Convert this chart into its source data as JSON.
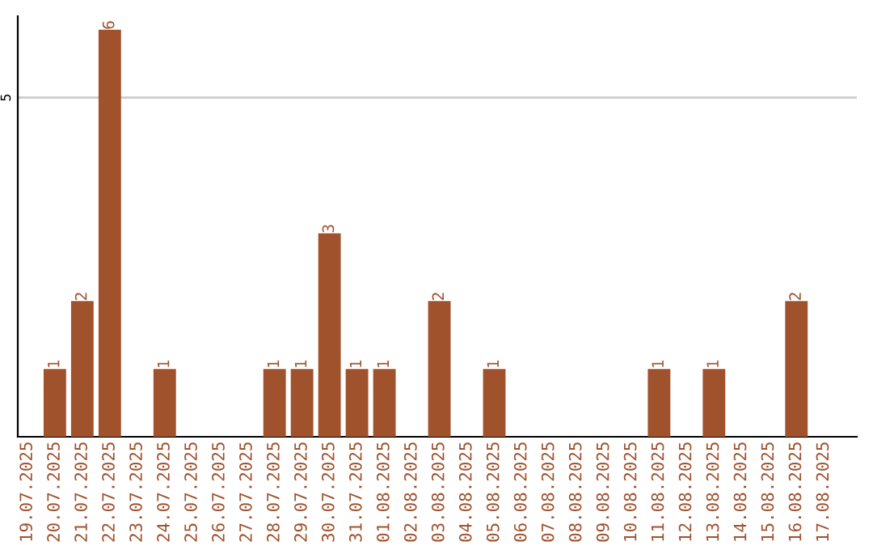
{
  "chart_data": {
    "type": "bar",
    "categories": [
      "19.07.2025",
      "20.07.2025",
      "21.07.2025",
      "22.07.2025",
      "23.07.2025",
      "24.07.2025",
      "25.07.2025",
      "26.07.2025",
      "27.07.2025",
      "28.07.2025",
      "29.07.2025",
      "30.07.2025",
      "31.07.2025",
      "01.08.2025",
      "02.08.2025",
      "03.08.2025",
      "04.08.2025",
      "05.08.2025",
      "06.08.2025",
      "07.08.2025",
      "08.08.2025",
      "09.08.2025",
      "10.08.2025",
      "11.08.2025",
      "12.08.2025",
      "13.08.2025",
      "14.08.2025",
      "15.08.2025",
      "16.08.2025",
      "17.08.2025"
    ],
    "values": [
      0,
      1,
      2,
      6,
      0,
      1,
      0,
      0,
      0,
      1,
      1,
      3,
      1,
      1,
      0,
      2,
      0,
      1,
      0,
      0,
      0,
      0,
      0,
      1,
      0,
      1,
      0,
      0,
      2,
      0
    ],
    "value_labels": [
      null,
      "1",
      "2",
      "6",
      null,
      "1",
      null,
      null,
      null,
      "1",
      "1",
      "3",
      "1",
      "1",
      null,
      "2",
      null,
      "1",
      null,
      null,
      null,
      null,
      null,
      "1",
      null,
      "1",
      null,
      null,
      "2",
      null
    ],
    "color": "#a0522d",
    "ylim": [
      0,
      6.2
    ],
    "yticks": [
      5
    ],
    "grid": "y"
  }
}
